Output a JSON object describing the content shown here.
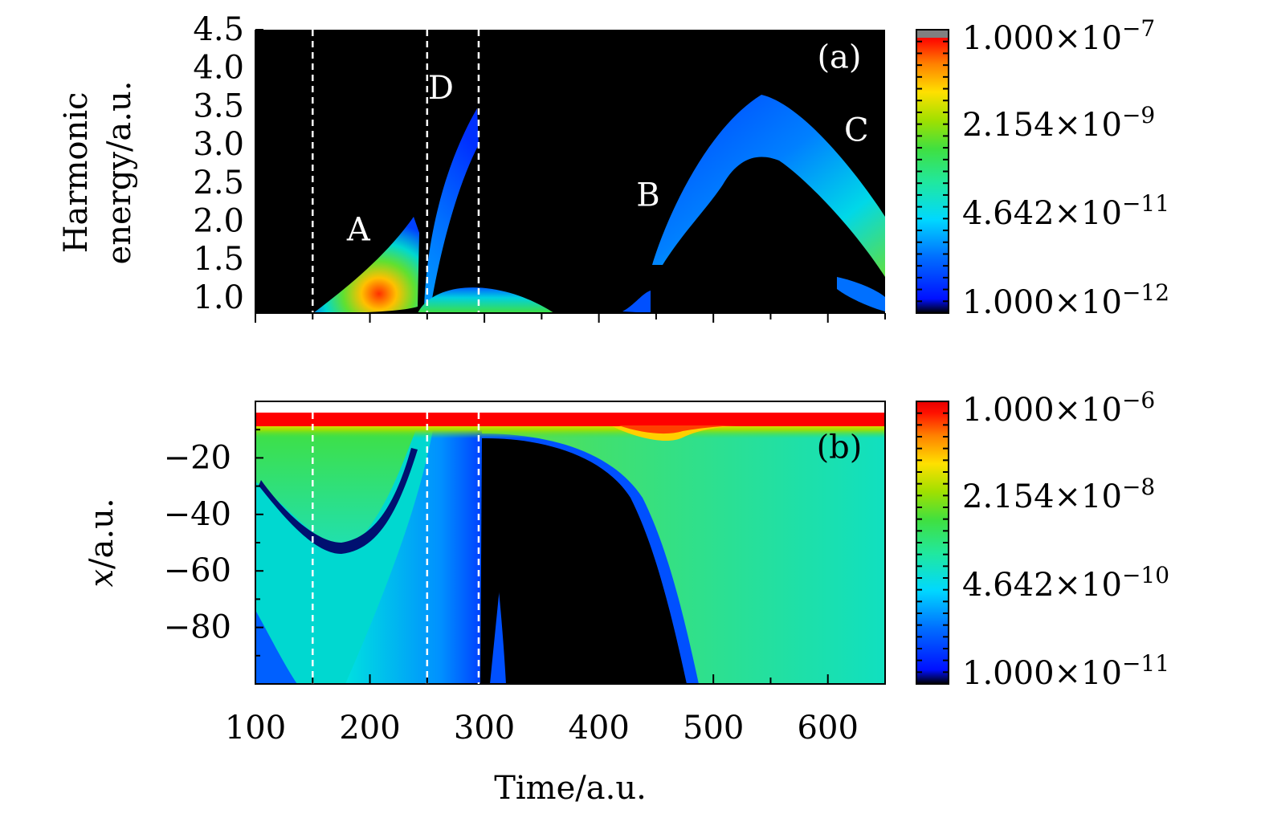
{
  "chart_data": [
    {
      "panel": "(a)",
      "type": "heatmap",
      "xlabel": "",
      "ylabel_lines": [
        "Harmonic",
        "energy/a.u."
      ],
      "xlim": [
        100,
        650
      ],
      "ylim": [
        0.8,
        4.5
      ],
      "yticks": [
        "1.0",
        "1.5",
        "2.0",
        "2.5",
        "3.0",
        "3.5",
        "4.0",
        "4.5"
      ],
      "ytick_values": [
        1.0,
        1.5,
        2.0,
        2.5,
        3.0,
        3.5,
        4.0,
        4.5
      ],
      "xtick_values": [
        100,
        150,
        200,
        250,
        300,
        350,
        400,
        450,
        500,
        550,
        600,
        650
      ],
      "colorbar": {
        "scale": "log",
        "labels": [
          "1.000×10⁻⁷",
          "2.154×10⁻⁹",
          "4.642×10⁻¹¹",
          "1.000×10⁻¹²"
        ],
        "label_mantissas": [
          "1.000",
          "2.154",
          "4.642",
          "1.000"
        ],
        "label_exponents": [
          "−7",
          "−9",
          "−11",
          "−12"
        ]
      },
      "guide_lines_x": [
        150,
        250,
        295
      ],
      "annotations": [
        {
          "text": "A",
          "x": 190,
          "y": 1.75
        },
        {
          "text": "D",
          "x": 262,
          "y": 3.6
        },
        {
          "text": "B",
          "x": 443,
          "y": 2.2
        },
        {
          "text": "C",
          "x": 625,
          "y": 3.05
        },
        {
          "text": "(a)",
          "x": 610,
          "y": 4.0
        }
      ],
      "features": [
        {
          "label": "A",
          "shape": "rising arc",
          "x_range": [
            150,
            245
          ],
          "energy_peak": 2.05,
          "color": "green-yellow-red"
        },
        {
          "label": "D",
          "shape": "steep arc",
          "x_range": [
            250,
            295
          ],
          "energy_peak": 3.5,
          "color": "blue"
        },
        {
          "label": "low band",
          "shape": "dome",
          "x_range": [
            250,
            360
          ],
          "energy_peak": 1.15,
          "color": "cyan-green"
        },
        {
          "label": "B",
          "shape": "rising branch",
          "x_range": [
            440,
            545
          ],
          "energy_peak": 3.65,
          "color": "blue"
        },
        {
          "label": "C",
          "shape": "falling branch",
          "x_range": [
            545,
            650
          ],
          "energy_peak": 3.65,
          "color": "blue-cyan-green"
        }
      ]
    },
    {
      "panel": "(b)",
      "type": "heatmap",
      "xlabel": "Time/a.u.",
      "ylabel": "x/a.u.",
      "ylabel_italic_part": "x",
      "ylabel_rest": "/a.u.",
      "xlim": [
        100,
        650
      ],
      "ylim": [
        -100,
        0
      ],
      "xticks": [
        "100",
        "200",
        "300",
        "400",
        "500",
        "600"
      ],
      "xtick_values": [
        100,
        200,
        300,
        400,
        500,
        600
      ],
      "yticks": [
        "−20",
        "−40",
        "−60",
        "−80"
      ],
      "ytick_values": [
        -20,
        -40,
        -60,
        -80
      ],
      "colorbar": {
        "scale": "log",
        "labels": [
          "1.000×10⁻⁶",
          "2.154×10⁻⁸",
          "4.642×10⁻¹⁰",
          "1.000×10⁻¹¹"
        ],
        "label_mantissas": [
          "1.000",
          "2.154",
          "4.642",
          "1.000"
        ],
        "label_exponents": [
          "−6",
          "−8",
          "−10",
          "−11"
        ]
      },
      "guide_lines_x": [
        150,
        250,
        295
      ],
      "annotations": [
        {
          "text": "(b)",
          "x": 610,
          "y": -20
        }
      ],
      "features": [
        {
          "label": "bound state",
          "y_range": [
            -9,
            -4
          ],
          "color": "red"
        },
        {
          "label": "wavepacket dip",
          "x": 175,
          "y": -53,
          "color": "dark blue"
        },
        {
          "label": "depleted region",
          "x_range": [
            295,
            480
          ],
          "color": "black"
        }
      ]
    }
  ],
  "colormap": [
    "#000000",
    "#0010ff",
    "#0070ff",
    "#00d8ff",
    "#20e8a0",
    "#40e040",
    "#a0e000",
    "#ffe000",
    "#ff8000",
    "#ff2000",
    "#e80000",
    "#808080"
  ]
}
